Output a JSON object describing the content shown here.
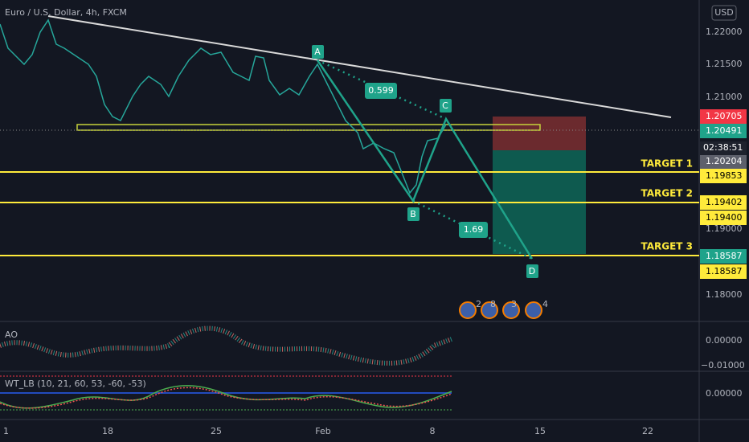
{
  "header": {
    "symbol": "Euro / U.S. Dollar, 4h, FXCM",
    "currency": "USD"
  },
  "price_axis": {
    "ticks": [
      "1.22000",
      "1.21500",
      "1.21000",
      "1.19000",
      "1.18000"
    ],
    "labels": {
      "high": "1.20705",
      "last": "1.20491",
      "countdown": "02:38:51",
      "low": "1.20204",
      "target_1": "1.19853",
      "target_2a": "1.19402",
      "target_2b": "1.19400",
      "target_3a": "1.18587",
      "target_3b": "1.18587"
    }
  },
  "targets": [
    "TARGET 1",
    "TARGET 2",
    "TARGET 3"
  ],
  "pattern": {
    "points": [
      "A",
      "B",
      "C",
      "D"
    ],
    "ratios": [
      "0.599",
      "1.69"
    ]
  },
  "events": [
    "2",
    "8",
    "3",
    "4"
  ],
  "time_axis": [
    "1",
    "18",
    "25",
    "Feb",
    "8",
    "15",
    "22"
  ],
  "indicators": {
    "ao": {
      "name": "AO",
      "ticks": [
        "0.00000",
        "−0.01000"
      ]
    },
    "wt": {
      "name": "WT_LB (10, 21, 60, 53, -60, -53)",
      "ticks": [
        "0.00000"
      ]
    }
  }
}
